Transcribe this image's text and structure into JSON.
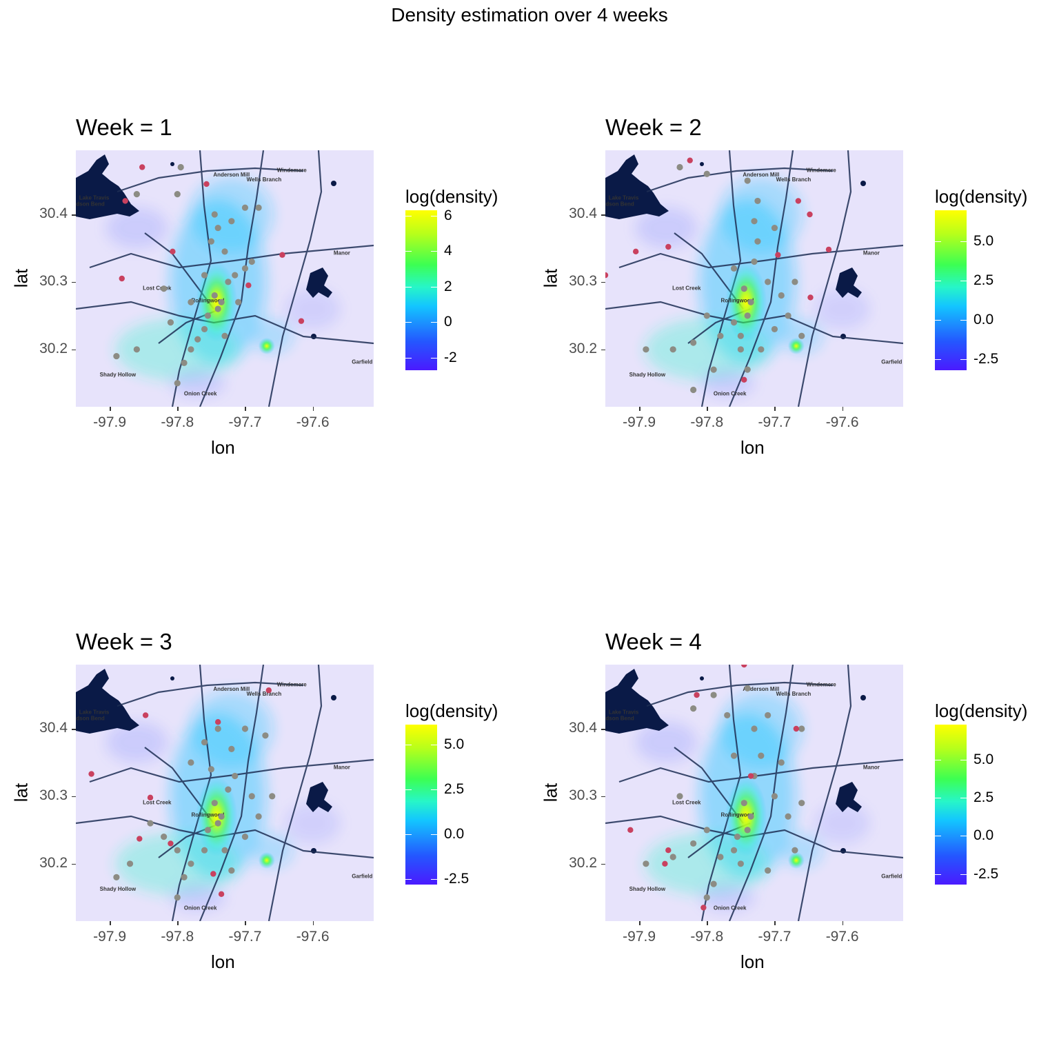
{
  "title": "Density estimation over 4 weeks",
  "axes": {
    "xlabel": "lon",
    "ylabel": "lat",
    "xticks": [
      "-97.9",
      "-97.8",
      "-97.7",
      "-97.6"
    ],
    "yticks": [
      "30.2",
      "30.3",
      "30.4"
    ],
    "xlim": [
      -97.95,
      -97.51
    ],
    "ylim": [
      30.115,
      30.495
    ]
  },
  "place_labels": [
    "Anderson Mill",
    "Windemere",
    "Wells Branch",
    "Lake Travis",
    "Hudson Bend",
    "Manor",
    "Lost Creek",
    "Rollingwood",
    "Garfield",
    "Shady Hollow",
    "Onion Creek"
  ],
  "legend_title": "log(density)",
  "colors": {
    "low": "#4a1aff",
    "mid": "#13c5ff",
    "high_mid": "#3cff52",
    "high": "#ffff00",
    "point_grey": "#8c8c84",
    "point_red": "#c9415f"
  },
  "chart_data": [
    {
      "type": "scatter",
      "title": "Week = 1",
      "legend_ticks": [
        "6",
        "4",
        "2",
        "0",
        "-2"
      ],
      "legend_range": [
        -2.7,
        6.3
      ],
      "hotspots": [
        {
          "lon": -97.742,
          "lat": 30.27,
          "level": 6
        },
        {
          "lon": -97.668,
          "lat": 30.205,
          "level": 5
        }
      ],
      "points": [
        {
          "lon": -97.735,
          "lat": 30.27
        },
        {
          "lon": -97.745,
          "lat": 30.28
        },
        {
          "lon": -97.74,
          "lat": 30.26
        },
        {
          "lon": -97.755,
          "lat": 30.25
        },
        {
          "lon": -97.725,
          "lat": 30.3
        },
        {
          "lon": -97.715,
          "lat": 30.31
        },
        {
          "lon": -97.7,
          "lat": 30.32
        },
        {
          "lon": -97.76,
          "lat": 30.23
        },
        {
          "lon": -97.78,
          "lat": 30.2
        },
        {
          "lon": -97.79,
          "lat": 30.18
        },
        {
          "lon": -97.8,
          "lat": 30.15
        },
        {
          "lon": -97.75,
          "lat": 30.36
        },
        {
          "lon": -97.74,
          "lat": 30.38
        },
        {
          "lon": -97.72,
          "lat": 30.39
        },
        {
          "lon": -97.7,
          "lat": 30.41
        },
        {
          "lon": -97.69,
          "lat": 30.33
        },
        {
          "lon": -97.78,
          "lat": 30.27
        },
        {
          "lon": -97.73,
          "lat": 30.22
        },
        {
          "lon": -97.8,
          "lat": 30.43
        },
        {
          "lon": -97.86,
          "lat": 30.43
        },
        {
          "lon": -97.89,
          "lat": 30.19
        },
        {
          "lon": -97.86,
          "lat": 30.2
        },
        {
          "lon": -97.795,
          "lat": 30.47
        },
        {
          "lon": -97.73,
          "lat": 30.345
        },
        {
          "lon": -97.76,
          "lat": 30.31
        },
        {
          "lon": -97.77,
          "lat": 30.215
        },
        {
          "lon": -97.745,
          "lat": 30.4
        },
        {
          "lon": -97.71,
          "lat": 30.27
        },
        {
          "lon": -97.68,
          "lat": 30.41
        },
        {
          "lon": -97.82,
          "lat": 30.29
        },
        {
          "lon": -97.81,
          "lat": 30.24
        }
      ],
      "outliers": [
        {
          "lon": -97.877,
          "lat": 30.42
        },
        {
          "lon": -97.852,
          "lat": 30.47
        },
        {
          "lon": -97.757,
          "lat": 30.445
        },
        {
          "lon": -97.882,
          "lat": 30.305
        },
        {
          "lon": -97.807,
          "lat": 30.345
        },
        {
          "lon": -97.617,
          "lat": 30.242
        },
        {
          "lon": -97.695,
          "lat": 30.295
        },
        {
          "lon": -97.645,
          "lat": 30.34
        }
      ]
    },
    {
      "type": "scatter",
      "title": "Week = 2",
      "legend_ticks": [
        "5.0",
        "2.5",
        "0.0",
        "-2.5"
      ],
      "legend_range": [
        -3.2,
        7.0
      ],
      "hotspots": [
        {
          "lon": -97.742,
          "lat": 30.27,
          "level": 6
        },
        {
          "lon": -97.668,
          "lat": 30.205,
          "level": 5
        }
      ],
      "points": [
        {
          "lon": -97.735,
          "lat": 30.27
        },
        {
          "lon": -97.745,
          "lat": 30.29
        },
        {
          "lon": -97.74,
          "lat": 30.25
        },
        {
          "lon": -97.76,
          "lat": 30.24
        },
        {
          "lon": -97.73,
          "lat": 30.33
        },
        {
          "lon": -97.725,
          "lat": 30.36
        },
        {
          "lon": -97.73,
          "lat": 30.39
        },
        {
          "lon": -97.725,
          "lat": 30.42
        },
        {
          "lon": -97.74,
          "lat": 30.45
        },
        {
          "lon": -97.71,
          "lat": 30.3
        },
        {
          "lon": -97.69,
          "lat": 30.28
        },
        {
          "lon": -97.68,
          "lat": 30.25
        },
        {
          "lon": -97.7,
          "lat": 30.23
        },
        {
          "lon": -97.78,
          "lat": 30.22
        },
        {
          "lon": -97.8,
          "lat": 30.25
        },
        {
          "lon": -97.82,
          "lat": 30.21
        },
        {
          "lon": -97.85,
          "lat": 30.2
        },
        {
          "lon": -97.89,
          "lat": 30.2
        },
        {
          "lon": -97.79,
          "lat": 30.17
        },
        {
          "lon": -97.82,
          "lat": 30.14
        },
        {
          "lon": -97.7,
          "lat": 30.38
        },
        {
          "lon": -97.67,
          "lat": 30.3
        },
        {
          "lon": -97.66,
          "lat": 30.22
        },
        {
          "lon": -97.72,
          "lat": 30.2
        },
        {
          "lon": -97.75,
          "lat": 30.2
        },
        {
          "lon": -97.74,
          "lat": 30.17
        },
        {
          "lon": -97.84,
          "lat": 30.47
        },
        {
          "lon": -97.8,
          "lat": 30.46
        },
        {
          "lon": -97.76,
          "lat": 30.32
        },
        {
          "lon": -97.75,
          "lat": 30.22
        }
      ],
      "outliers": [
        {
          "lon": -97.95,
          "lat": 30.31
        },
        {
          "lon": -97.905,
          "lat": 30.345
        },
        {
          "lon": -97.857,
          "lat": 30.352
        },
        {
          "lon": -97.825,
          "lat": 30.48
        },
        {
          "lon": -97.745,
          "lat": 30.155
        },
        {
          "lon": -97.62,
          "lat": 30.348
        },
        {
          "lon": -97.648,
          "lat": 30.4
        },
        {
          "lon": -97.695,
          "lat": 30.34
        },
        {
          "lon": -97.665,
          "lat": 30.42
        },
        {
          "lon": -97.647,
          "lat": 30.277
        }
      ]
    },
    {
      "type": "scatter",
      "title": "Week = 3",
      "legend_ticks": [
        "5.0",
        "2.5",
        "0.0",
        "-2.5"
      ],
      "legend_range": [
        -2.8,
        6.1
      ],
      "hotspots": [
        {
          "lon": -97.742,
          "lat": 30.27,
          "level": 6
        },
        {
          "lon": -97.668,
          "lat": 30.205,
          "level": 5
        }
      ],
      "points": [
        {
          "lon": -97.735,
          "lat": 30.27
        },
        {
          "lon": -97.745,
          "lat": 30.29
        },
        {
          "lon": -97.74,
          "lat": 30.26
        },
        {
          "lon": -97.755,
          "lat": 30.25
        },
        {
          "lon": -97.725,
          "lat": 30.31
        },
        {
          "lon": -97.715,
          "lat": 30.33
        },
        {
          "lon": -97.72,
          "lat": 30.37
        },
        {
          "lon": -97.7,
          "lat": 30.4
        },
        {
          "lon": -97.69,
          "lat": 30.3
        },
        {
          "lon": -97.68,
          "lat": 30.27
        },
        {
          "lon": -97.76,
          "lat": 30.22
        },
        {
          "lon": -97.78,
          "lat": 30.2
        },
        {
          "lon": -97.8,
          "lat": 30.22
        },
        {
          "lon": -97.82,
          "lat": 30.24
        },
        {
          "lon": -97.8,
          "lat": 30.15
        },
        {
          "lon": -97.79,
          "lat": 30.18
        },
        {
          "lon": -97.87,
          "lat": 30.2
        },
        {
          "lon": -97.89,
          "lat": 30.18
        },
        {
          "lon": -97.75,
          "lat": 30.34
        },
        {
          "lon": -97.76,
          "lat": 30.38
        },
        {
          "lon": -97.74,
          "lat": 30.4
        },
        {
          "lon": -97.67,
          "lat": 30.39
        },
        {
          "lon": -97.66,
          "lat": 30.3
        },
        {
          "lon": -97.7,
          "lat": 30.24
        },
        {
          "lon": -97.73,
          "lat": 30.22
        },
        {
          "lon": -97.78,
          "lat": 30.35
        },
        {
          "lon": -97.84,
          "lat": 30.26
        },
        {
          "lon": -97.72,
          "lat": 30.19
        }
      ],
      "outliers": [
        {
          "lon": -97.927,
          "lat": 30.333
        },
        {
          "lon": -97.856,
          "lat": 30.237
        },
        {
          "lon": -97.84,
          "lat": 30.298
        },
        {
          "lon": -97.847,
          "lat": 30.42
        },
        {
          "lon": -97.665,
          "lat": 30.457
        },
        {
          "lon": -97.735,
          "lat": 30.155
        },
        {
          "lon": -97.81,
          "lat": 30.23
        },
        {
          "lon": -97.74,
          "lat": 30.41
        },
        {
          "lon": -97.747,
          "lat": 30.185
        }
      ]
    },
    {
      "type": "scatter",
      "title": "Week = 4",
      "legend_ticks": [
        "5.0",
        "2.5",
        "0.0",
        "-2.5"
      ],
      "legend_range": [
        -3.2,
        7.3
      ],
      "hotspots": [
        {
          "lon": -97.742,
          "lat": 30.27,
          "level": 6
        },
        {
          "lon": -97.668,
          "lat": 30.205,
          "level": 5
        }
      ],
      "points": [
        {
          "lon": -97.735,
          "lat": 30.27
        },
        {
          "lon": -97.745,
          "lat": 30.29
        },
        {
          "lon": -97.74,
          "lat": 30.25
        },
        {
          "lon": -97.755,
          "lat": 30.24
        },
        {
          "lon": -97.73,
          "lat": 30.33
        },
        {
          "lon": -97.72,
          "lat": 30.36
        },
        {
          "lon": -97.73,
          "lat": 30.4
        },
        {
          "lon": -97.71,
          "lat": 30.42
        },
        {
          "lon": -97.7,
          "lat": 30.3
        },
        {
          "lon": -97.68,
          "lat": 30.27
        },
        {
          "lon": -97.66,
          "lat": 30.29
        },
        {
          "lon": -97.76,
          "lat": 30.22
        },
        {
          "lon": -97.78,
          "lat": 30.21
        },
        {
          "lon": -97.8,
          "lat": 30.25
        },
        {
          "lon": -97.82,
          "lat": 30.23
        },
        {
          "lon": -97.85,
          "lat": 30.21
        },
        {
          "lon": -97.89,
          "lat": 30.2
        },
        {
          "lon": -97.79,
          "lat": 30.17
        },
        {
          "lon": -97.8,
          "lat": 30.15
        },
        {
          "lon": -97.76,
          "lat": 30.36
        },
        {
          "lon": -97.77,
          "lat": 30.42
        },
        {
          "lon": -97.79,
          "lat": 30.45
        },
        {
          "lon": -97.74,
          "lat": 30.46
        },
        {
          "lon": -97.66,
          "lat": 30.4
        },
        {
          "lon": -97.67,
          "lat": 30.22
        },
        {
          "lon": -97.71,
          "lat": 30.19
        },
        {
          "lon": -97.75,
          "lat": 30.2
        },
        {
          "lon": -97.84,
          "lat": 30.3
        },
        {
          "lon": -97.82,
          "lat": 30.43
        },
        {
          "lon": -97.69,
          "lat": 30.35
        }
      ],
      "outliers": [
        {
          "lon": -97.913,
          "lat": 30.25
        },
        {
          "lon": -97.857,
          "lat": 30.22
        },
        {
          "lon": -97.815,
          "lat": 30.45
        },
        {
          "lon": -97.745,
          "lat": 30.495
        },
        {
          "lon": -97.668,
          "lat": 30.4
        },
        {
          "lon": -97.805,
          "lat": 30.135
        },
        {
          "lon": -97.862,
          "lat": 30.2
        },
        {
          "lon": -97.735,
          "lat": 30.33
        }
      ]
    }
  ]
}
